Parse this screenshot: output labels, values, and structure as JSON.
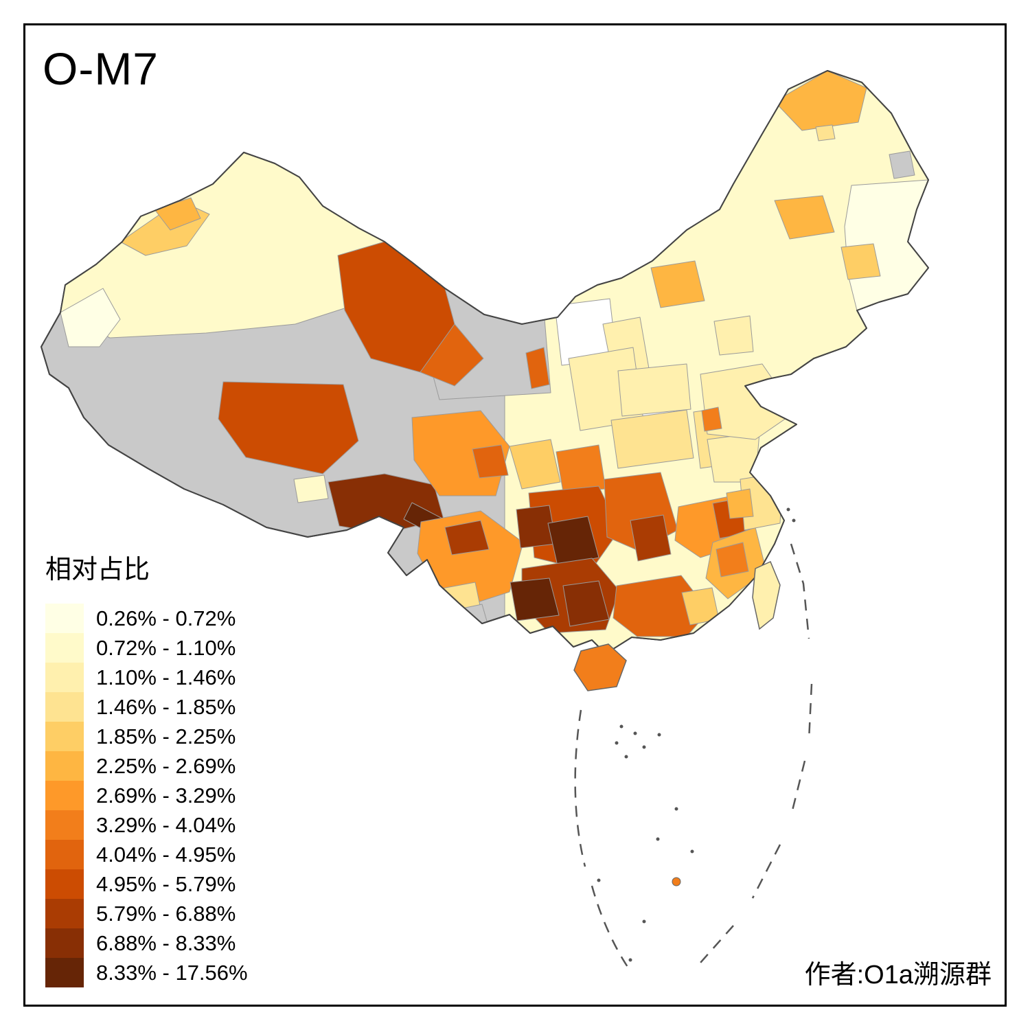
{
  "title": "O-M7",
  "attribution": "作者:O1a溯源群",
  "legend": {
    "title": "相对占比",
    "items": [
      {
        "label": "0.26% - 0.72%",
        "color": "#FFFFE5"
      },
      {
        "label": "0.72% - 1.10%",
        "color": "#FFFACA"
      },
      {
        "label": "1.10% - 1.46%",
        "color": "#FFF0AE"
      },
      {
        "label": "1.46% - 1.85%",
        "color": "#FEE391"
      },
      {
        "label": "1.85% - 2.25%",
        "color": "#FECE65"
      },
      {
        "label": "2.25% - 2.69%",
        "color": "#FEB642"
      },
      {
        "label": "2.69% - 3.29%",
        "color": "#FE9929"
      },
      {
        "label": "3.29% - 4.04%",
        "color": "#F27E1B"
      },
      {
        "label": "4.04% - 4.95%",
        "color": "#E1640E"
      },
      {
        "label": "4.95% - 5.79%",
        "color": "#CC4C02"
      },
      {
        "label": "5.79% - 6.88%",
        "color": "#AA3C03"
      },
      {
        "label": "6.88% - 8.33%",
        "color": "#882F05"
      },
      {
        "label": "8.33% - 17.56%",
        "color": "#662506"
      }
    ]
  },
  "map": {
    "type": "choropleth",
    "region": "China prefectures",
    "no_data_color": "#C9C9C9",
    "border_color": "#444444",
    "boundary_color": "#9A9A9A",
    "dash_line_color": "#555555",
    "patches": {
      "mainland-base": "gray",
      "east-china-base": 2,
      "xinjiang-north": 2,
      "xinjiang-west-pale": 1,
      "ili-band": 5,
      "tacheng-spot": 6,
      "northeast-pale": 1,
      "ne-gray-spot": "gray",
      "inner-mongolia-gray": "gray",
      "white-ordos": "white",
      "white-shanxi-north": "white",
      "mohe": 6,
      "nenjiang-spot": 4,
      "harbin-spot": 6,
      "jilin-spot": 5,
      "im-east-orange": 6,
      "beijing-area": 3,
      "shanxi-strip": 3,
      "gansu-west": 10,
      "gansu-tail": 9,
      "qinghai-west": 10,
      "qinghai-pale": 2,
      "tibet-south-dark": 12,
      "tibet-south-darkest": 13,
      "ningxia-spot": 9,
      "shaanxi-center": 3,
      "henan": 3,
      "hubei": 4,
      "wuhan-spot": 8,
      "anhui": 4,
      "jiangsu": 3,
      "shandong": 3,
      "shandong-spot": 8,
      "sichuan-west": 7,
      "sichuan-spot": 9,
      "chengdu-basin": 5,
      "chongqing": 8,
      "yunnan-base": 7,
      "yunnan-dark": 11,
      "yunnan-pale": 4,
      "yunnan-gray": "gray",
      "guizhou-base": 10,
      "guizhou-west-dark": 12,
      "guizhou-darkest": 13,
      "hunan": 9,
      "hunan-dark": 11,
      "guangxi-base": 11,
      "guangxi-darkest": 13,
      "guangxi-dark": 12,
      "guangdong": 9,
      "guangdong-coast-light": 5,
      "jiangxi": 7,
      "jiangxi-dark": 10,
      "fujian": 6,
      "fujian-spot": 8,
      "zhejiang": 4,
      "zhejiang-spot": 6,
      "hainan": 8,
      "taiwan": 3,
      "sansha-dot": 8
    }
  }
}
